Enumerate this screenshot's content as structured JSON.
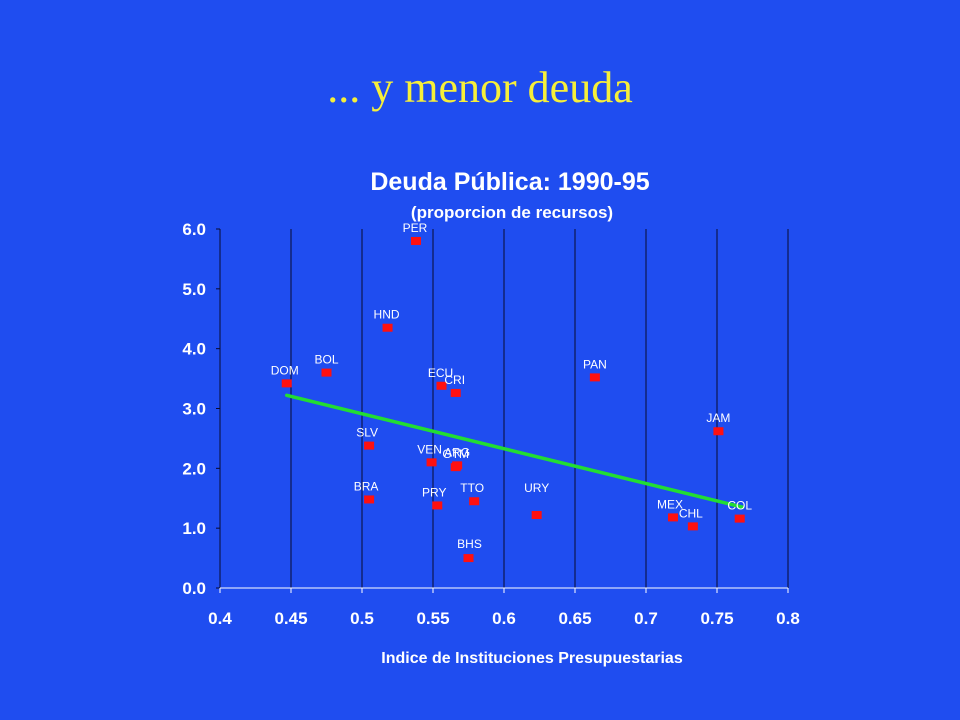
{
  "slide": {
    "title": "... y menor deuda"
  },
  "chart_data": {
    "type": "scatter",
    "title": "Deuda Pública: 1990-95",
    "subtitle": "(proporcion de recursos)",
    "xlabel": "Indice de Instituciones Presupuestarias",
    "ylabel": "",
    "xlim": [
      0.4,
      0.8
    ],
    "ylim": [
      0.0,
      6.0
    ],
    "x_ticks": [
      "0.4",
      "0.45",
      "0.5",
      "0.55",
      "0.6",
      "0.65",
      "0.7",
      "0.75",
      "0.8"
    ],
    "y_ticks": [
      "0.0",
      "1.0",
      "2.0",
      "3.0",
      "4.0",
      "5.0",
      "6.0"
    ],
    "grid": {
      "vertical": true,
      "horizontal": false
    },
    "legend": "none",
    "colors": {
      "background": "#1f4df0",
      "title": "#f6ef3a",
      "marker": "#ff1010",
      "trend": "#22dd33",
      "text": "#ffffff"
    },
    "points": [
      {
        "label": "PER",
        "x": 0.538,
        "y": 5.8
      },
      {
        "label": "HND",
        "x": 0.518,
        "y": 4.35
      },
      {
        "label": "BOL",
        "x": 0.475,
        "y": 3.6
      },
      {
        "label": "DOM",
        "x": 0.447,
        "y": 3.42
      },
      {
        "label": "ECU",
        "x": 0.556,
        "y": 3.38
      },
      {
        "label": "CRI",
        "x": 0.566,
        "y": 3.26
      },
      {
        "label": "PAN",
        "x": 0.664,
        "y": 3.52
      },
      {
        "label": "JAM",
        "x": 0.751,
        "y": 2.62
      },
      {
        "label": "SLV",
        "x": 0.505,
        "y": 2.38
      },
      {
        "label": "VEN",
        "x": 0.549,
        "y": 2.1
      },
      {
        "label": "ARG",
        "x": 0.567,
        "y": 2.05
      },
      {
        "label": "GTM",
        "x": 0.566,
        "y": 2.02
      },
      {
        "label": "BRA",
        "x": 0.505,
        "y": 1.48
      },
      {
        "label": "TTO",
        "x": 0.579,
        "y": 1.45
      },
      {
        "label": "PRY",
        "x": 0.553,
        "y": 1.38
      },
      {
        "label": "URY",
        "x": 0.623,
        "y": 1.22
      },
      {
        "label": "MEX",
        "x": 0.719,
        "y": 1.18
      },
      {
        "label": "COL",
        "x": 0.766,
        "y": 1.16
      },
      {
        "label": "CHL",
        "x": 0.733,
        "y": 1.03
      },
      {
        "label": "BHS",
        "x": 0.575,
        "y": 0.5
      }
    ],
    "trendline": {
      "x": [
        0.447,
        0.768
      ],
      "y": [
        3.22,
        1.35
      ]
    }
  }
}
